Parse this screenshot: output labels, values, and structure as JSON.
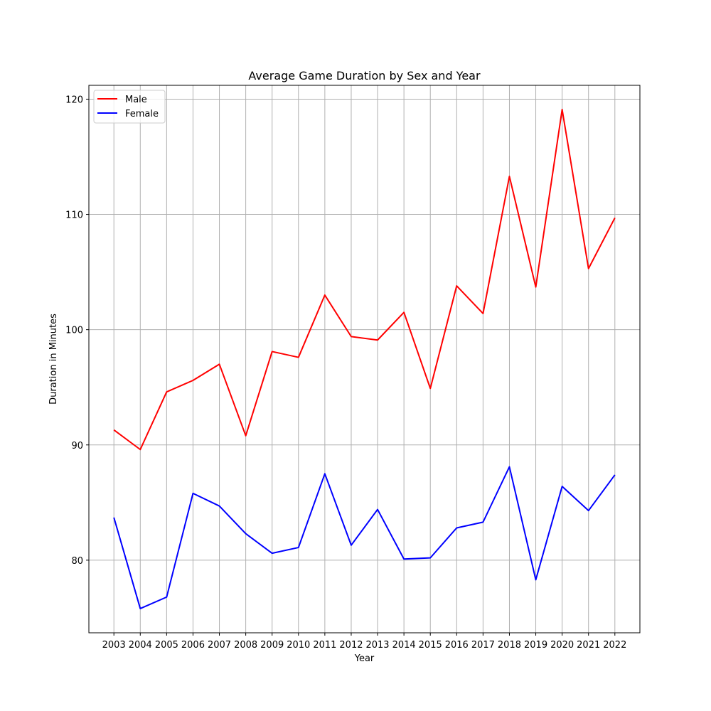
{
  "chart_data": {
    "type": "line",
    "title": "Average Game Duration by Sex and Year",
    "xlabel": "Year",
    "ylabel": "Duration in Minutes",
    "categories": [
      "2003",
      "2004",
      "2005",
      "2006",
      "2007",
      "2008",
      "2009",
      "2010",
      "2011",
      "2012",
      "2013",
      "2014",
      "2015",
      "2016",
      "2017",
      "2018",
      "2019",
      "2020",
      "2021",
      "2022"
    ],
    "series": [
      {
        "name": "Male",
        "color": "#ff0000",
        "values": [
          91.3,
          89.6,
          94.6,
          95.6,
          97.0,
          90.8,
          98.1,
          97.6,
          103.0,
          99.4,
          99.1,
          101.5,
          94.9,
          103.8,
          101.4,
          113.3,
          103.7,
          119.1,
          105.3,
          109.7
        ]
      },
      {
        "name": "Female",
        "color": "#0000ff",
        "values": [
          83.7,
          75.8,
          76.8,
          85.8,
          84.7,
          82.3,
          80.6,
          81.1,
          87.5,
          81.3,
          84.4,
          80.1,
          80.2,
          82.8,
          83.3,
          88.1,
          78.3,
          86.4,
          84.3,
          87.4
        ]
      }
    ],
    "ylim": [
      73.7,
      121.2
    ],
    "yticks": [
      80,
      90,
      100,
      110,
      120
    ],
    "grid": true,
    "legend": "top-left"
  }
}
